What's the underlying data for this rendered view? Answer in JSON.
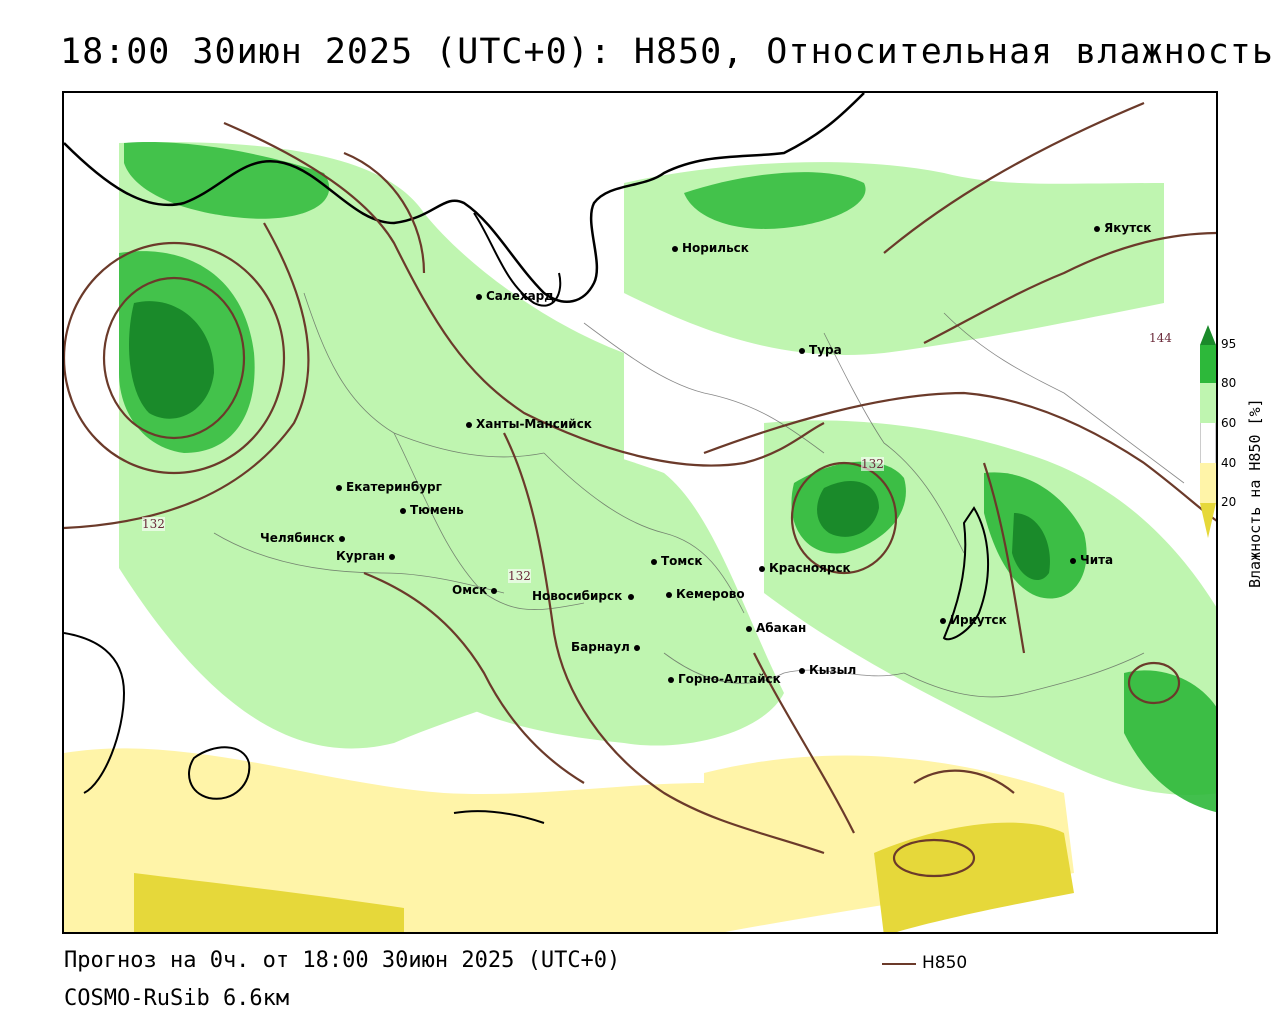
{
  "title": "18:00 30июн 2025 (UTC+0): H850, Относительная влажность",
  "footer": {
    "forecast": "Прогноз на 0ч. от 18:00 30июн 2025 (UTC+0)",
    "model": "COSMO-RuSib 6.6км"
  },
  "legend": {
    "line_label": "H850",
    "line_color": "#6b3a2a"
  },
  "colorbar": {
    "title": "Влажность на H850 [%]",
    "ticks": [
      "95",
      "80",
      "60",
      "40",
      "20"
    ],
    "colors": {
      "above95": "#1a8a2a",
      "80_95": "#2db83a",
      "60_80": "#bff5b0",
      "40_60": "#ffffff",
      "20_40": "#fff4a8",
      "below20": "#e6d83a"
    }
  },
  "cities": [
    {
      "name": "Якутск",
      "id": "yakutsk"
    },
    {
      "name": "Норильск",
      "id": "norilsk"
    },
    {
      "name": "Салехард",
      "id": "salekhard"
    },
    {
      "name": "Тура",
      "id": "tura"
    },
    {
      "name": "Ханты-Мансийск",
      "id": "khanty"
    },
    {
      "name": "Екатеринбург",
      "id": "ekaterinburg"
    },
    {
      "name": "Тюмень",
      "id": "tyumen"
    },
    {
      "name": "Челябинск",
      "id": "chelyabinsk"
    },
    {
      "name": "Курган",
      "id": "kurgan"
    },
    {
      "name": "Омск",
      "id": "omsk"
    },
    {
      "name": "Томск",
      "id": "tomsk"
    },
    {
      "name": "Новосибирск",
      "id": "novosibirsk"
    },
    {
      "name": "Кемерово",
      "id": "kemerovo"
    },
    {
      "name": "Красноярск",
      "id": "krasnoyarsk"
    },
    {
      "name": "Абакан",
      "id": "abakan"
    },
    {
      "name": "Барнаул",
      "id": "barnaul"
    },
    {
      "name": "Горно-Алтайск",
      "id": "gorno"
    },
    {
      "name": "Кызыл",
      "id": "kyzyl"
    },
    {
      "name": "Иркутск",
      "id": "irkutsk"
    },
    {
      "name": "Чита",
      "id": "chita"
    }
  ],
  "contour_labels": [
    "144",
    "132",
    "132",
    "132"
  ]
}
